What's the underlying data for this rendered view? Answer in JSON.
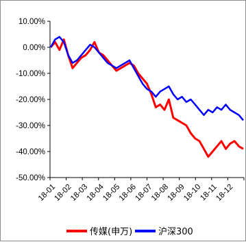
{
  "chart_data": {
    "type": "line",
    "title": "",
    "xlabel": "",
    "ylabel": "",
    "ylim": [
      -50,
      10
    ],
    "y_ticks": [
      "10.00%",
      "0.00%",
      "-10.00%",
      "-20.00%",
      "-30.00%",
      "-40.00%",
      "-50.00%"
    ],
    "y_tick_values": [
      10,
      0,
      -10,
      -20,
      -30,
      -40,
      -50
    ],
    "x_ticks": [
      "18-01",
      "18-02",
      "18-03",
      "18-04",
      "18-05",
      "18-06",
      "18-07",
      "18-08",
      "18-09",
      "18-10",
      "18-11",
      "18-12"
    ],
    "grid": false,
    "legend_position": "bottom",
    "series": [
      {
        "name": "传媒(申万)",
        "color": "#ff0000",
        "values": [
          0,
          2,
          -1,
          3,
          -3,
          -8,
          -6,
          -4,
          -3,
          -1,
          2,
          -2,
          -3,
          -5,
          -7,
          -9,
          -8,
          -7,
          -6,
          -7,
          -10,
          -12,
          -14,
          -18,
          -23,
          -22,
          -24,
          -20,
          -27,
          -28,
          -29,
          -30,
          -33,
          -35,
          -36,
          -39,
          -42,
          -40,
          -38,
          -36,
          -39,
          -37,
          -36,
          -38,
          -39
        ]
      },
      {
        "name": "沪深300",
        "color": "#0000ff",
        "values": [
          0,
          3,
          4,
          2,
          -3,
          -6,
          -5,
          -3,
          -1,
          1,
          0,
          -2,
          -4,
          -6,
          -7,
          -8,
          -7,
          -6,
          -5,
          -8,
          -11,
          -14,
          -16,
          -17,
          -19,
          -17,
          -16,
          -15,
          -18,
          -20,
          -19,
          -21,
          -20,
          -22,
          -24,
          -26,
          -24,
          -25,
          -23,
          -24,
          -22,
          -24,
          -25,
          -26,
          -28
        ]
      }
    ]
  }
}
